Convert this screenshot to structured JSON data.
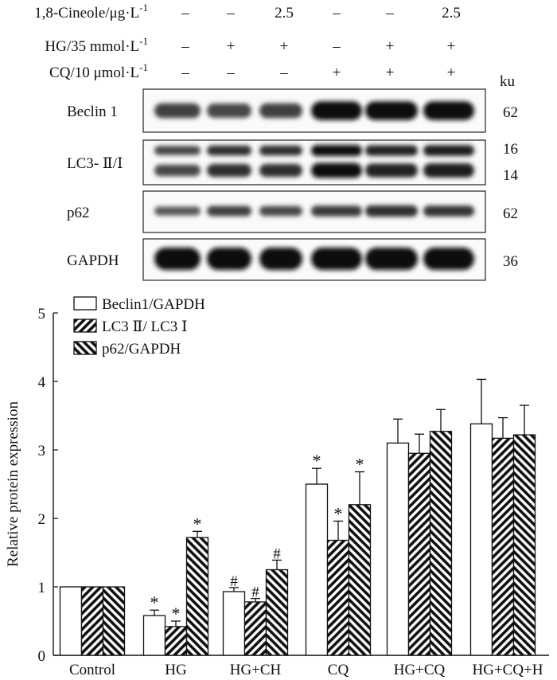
{
  "treatment_rows": [
    {
      "label": "1,8-Cineole/μg·L",
      "sup": "-1",
      "signs": [
        "–",
        "–",
        "2.5",
        "–",
        "–",
        "2.5"
      ]
    },
    {
      "label": "HG/35 mmol·L",
      "sup": "-1",
      "signs": [
        "–",
        "+",
        "+",
        "–",
        "+",
        "+"
      ]
    },
    {
      "label": "CQ/10 μmol·L",
      "sup": "-1",
      "signs": [
        "–",
        "–",
        "–",
        "+",
        "+",
        "+"
      ]
    }
  ],
  "ku_label": "ku",
  "blots": [
    {
      "label": "Beclin 1",
      "sizes": [
        "62"
      ],
      "intensity": [
        0.55,
        0.5,
        0.55,
        0.95,
        0.95,
        0.95
      ]
    },
    {
      "label": "LC3- Ⅱ/Ⅰ",
      "sizes": [
        "16",
        "14"
      ],
      "intensity": [
        0.5,
        0.7,
        0.7,
        0.95,
        0.8,
        0.85
      ]
    },
    {
      "label": "p62",
      "sizes": [
        "62"
      ],
      "intensity": [
        0.35,
        0.55,
        0.5,
        0.6,
        0.7,
        0.65
      ]
    },
    {
      "label": "GAPDH",
      "sizes": [
        "36"
      ],
      "intensity": [
        0.95,
        0.95,
        0.95,
        0.95,
        0.95,
        0.95
      ]
    }
  ],
  "chart_data": {
    "type": "bar",
    "categories": [
      "Control",
      "HG",
      "HG+CH",
      "CQ",
      "HG+CQ",
      "HG+CQ+H"
    ],
    "ylabel": "Relative protein expression",
    "xlabel": "",
    "ylim": [
      0,
      5
    ],
    "yticks": [
      "0",
      "1",
      "2",
      "3",
      "4",
      "5"
    ],
    "legend_position": "top-left",
    "series": [
      {
        "name": "Beclin1/GAPDH",
        "pattern": "white",
        "values": [
          1.0,
          0.58,
          0.93,
          2.5,
          3.1,
          3.38
        ],
        "errors": [
          0,
          0.08,
          0.06,
          0.23,
          0.35,
          0.65
        ],
        "marks": [
          "",
          "*",
          "#",
          "*",
          "",
          ""
        ]
      },
      {
        "name": "LC3 Ⅱ/ LC3 Ⅰ",
        "pattern": "hatch-right",
        "values": [
          1.0,
          0.42,
          0.78,
          1.68,
          2.95,
          3.17
        ],
        "errors": [
          0,
          0.08,
          0.05,
          0.28,
          0.28,
          0.3
        ],
        "marks": [
          "",
          "*",
          "#",
          "*",
          "",
          ""
        ]
      },
      {
        "name": "p62/GAPDH",
        "pattern": "hatch-left",
        "values": [
          1.0,
          1.72,
          1.25,
          2.2,
          3.27,
          3.22
        ],
        "errors": [
          0,
          0.09,
          0.14,
          0.48,
          0.32,
          0.43
        ],
        "marks": [
          "",
          "*",
          "#",
          "*",
          "",
          ""
        ]
      }
    ]
  }
}
